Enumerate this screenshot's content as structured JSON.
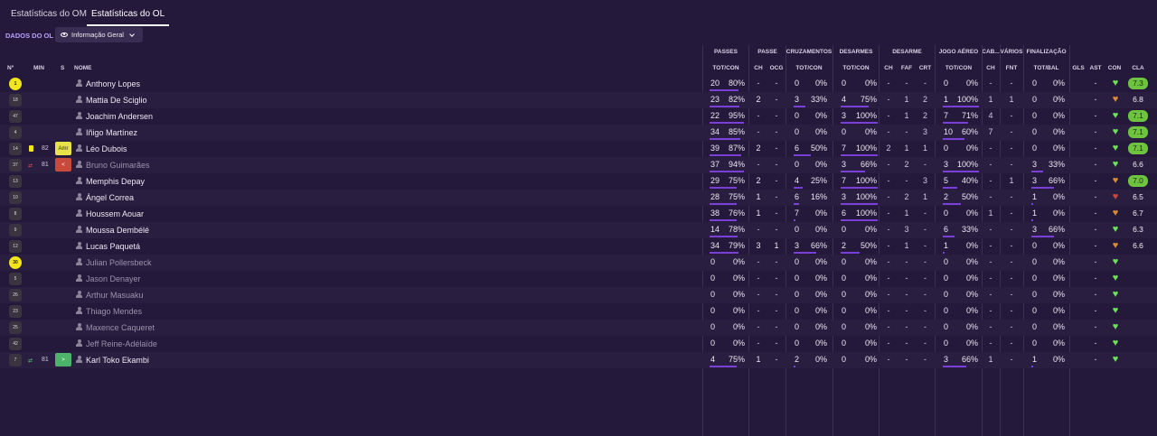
{
  "tabs": [
    {
      "label": "Estatísticas do OM"
    },
    {
      "label": "Estatísticas do OL"
    }
  ],
  "subbar": {
    "section": "DADOS DO OL",
    "view": "Informação Geral"
  },
  "groups": [
    "PASSES",
    "PASSE",
    "CRUZAMENTOS",
    "DESARMES",
    "DESARME",
    "JOGO AÉREO",
    "CAB...",
    "VÁRIOS",
    "FINALIZAÇÃO"
  ],
  "cols": {
    "num": "Nº",
    "min": "MIN",
    "s": "S",
    "name": "NOME",
    "pass_totcon": "TOT/CON",
    "ch": "CH",
    "ocg": "OCG",
    "cruz_totcon": "TOT/CON",
    "des_totcon": "TOT/CON",
    "des_ch": "CH",
    "faf": "FAF",
    "crt": "CRT",
    "air_totcon": "TOT/CON",
    "cab_ch": "CH",
    "fnt": "FNT",
    "totbal": "TOT/BAL",
    "gls": "GLS",
    "ast": "AST",
    "con": "CON",
    "cla": "CLA"
  },
  "colors": {
    "bg": "#24193a",
    "accent": "#7a3fd6",
    "rating_high": "#6ec43f",
    "card": "#f2e51a"
  },
  "players": [
    {
      "shirt": "1",
      "gk": true,
      "min": "",
      "event": "",
      "sub": "",
      "name": "Anthony Lopes",
      "muted": false,
      "p": [
        "20",
        "80%"
      ],
      "pch": "-",
      "ocg": "-",
      "cr": [
        "0",
        "0%"
      ],
      "de": [
        "0",
        "0%"
      ],
      "dch": "-",
      "faf": "-",
      "crt": "-",
      "air": [
        "0",
        "0%"
      ],
      "cch": "-",
      "fnt": "-",
      "fin": [
        "0",
        "0%"
      ],
      "gls": "",
      "ast": "-",
      "con": "green",
      "cla": "7.3",
      "hi": true
    },
    {
      "shirt": "18",
      "min": "",
      "event": "",
      "sub": "",
      "name": "Mattia De Sciglio",
      "muted": false,
      "p": [
        "23",
        "82%"
      ],
      "pch": "2",
      "ocg": "-",
      "cr": [
        "3",
        "33%"
      ],
      "de": [
        "4",
        "75%"
      ],
      "dch": "-",
      "faf": "1",
      "crt": "2",
      "air": [
        "1",
        "100%"
      ],
      "cch": "1",
      "fnt": "1",
      "fin": [
        "0",
        "0%"
      ],
      "gls": "",
      "ast": "-",
      "con": "orange",
      "cla": "6.8",
      "hi": false
    },
    {
      "shirt": "47",
      "min": "",
      "event": "",
      "sub": "",
      "name": "Joachim Andersen",
      "muted": false,
      "p": [
        "22",
        "95%"
      ],
      "pch": "-",
      "ocg": "-",
      "cr": [
        "0",
        "0%"
      ],
      "de": [
        "3",
        "100%"
      ],
      "dch": "-",
      "faf": "1",
      "crt": "2",
      "air": [
        "7",
        "71%"
      ],
      "cch": "4",
      "fnt": "-",
      "fin": [
        "0",
        "0%"
      ],
      "gls": "",
      "ast": "-",
      "con": "green",
      "cla": "7.1",
      "hi": true
    },
    {
      "shirt": "4",
      "min": "",
      "event": "",
      "sub": "",
      "name": "Iñigo Martínez",
      "muted": false,
      "p": [
        "34",
        "85%"
      ],
      "pch": "-",
      "ocg": "-",
      "cr": [
        "0",
        "0%"
      ],
      "de": [
        "0",
        "0%"
      ],
      "dch": "-",
      "faf": "-",
      "crt": "3",
      "air": [
        "10",
        "60%"
      ],
      "cch": "7",
      "fnt": "-",
      "fin": [
        "0",
        "0%"
      ],
      "gls": "",
      "ast": "-",
      "con": "green",
      "cla": "7.1",
      "hi": true
    },
    {
      "shirt": "14",
      "min": "82",
      "event": "card",
      "sub": "Amr",
      "name": "Léo Dubois",
      "muted": false,
      "p": [
        "39",
        "87%"
      ],
      "pch": "2",
      "ocg": "-",
      "cr": [
        "6",
        "50%"
      ],
      "de": [
        "7",
        "100%"
      ],
      "dch": "2",
      "faf": "1",
      "crt": "1",
      "air": [
        "0",
        "0%"
      ],
      "cch": "-",
      "fnt": "-",
      "fin": [
        "0",
        "0%"
      ],
      "gls": "",
      "ast": "-",
      "con": "green",
      "cla": "7.1",
      "hi": true
    },
    {
      "shirt": "37",
      "min": "81",
      "event": "subout",
      "sub": "<",
      "name": "Bruno Guimarães",
      "muted": true,
      "p": [
        "37",
        "94%"
      ],
      "pch": "-",
      "ocg": "-",
      "cr": [
        "0",
        "0%"
      ],
      "de": [
        "3",
        "66%"
      ],
      "dch": "-",
      "faf": "2",
      "crt": "-",
      "air": [
        "3",
        "100%"
      ],
      "cch": "-",
      "fnt": "-",
      "fin": [
        "3",
        "33%"
      ],
      "gls": "",
      "ast": "-",
      "con": "green",
      "cla": "6.6",
      "hi": false
    },
    {
      "shirt": "13",
      "min": "",
      "event": "",
      "sub": "",
      "name": "Memphis Depay",
      "muted": false,
      "p": [
        "29",
        "75%"
      ],
      "pch": "2",
      "ocg": "-",
      "cr": [
        "4",
        "25%"
      ],
      "de": [
        "7",
        "100%"
      ],
      "dch": "-",
      "faf": "-",
      "crt": "3",
      "air": [
        "5",
        "40%"
      ],
      "cch": "-",
      "fnt": "1",
      "fin": [
        "3",
        "66%"
      ],
      "gls": "",
      "ast": "-",
      "con": "orange",
      "cla": "7.0",
      "hi": true
    },
    {
      "shirt": "10",
      "min": "",
      "event": "",
      "sub": "",
      "name": "Ángel Correa",
      "muted": false,
      "p": [
        "28",
        "75%"
      ],
      "pch": "1",
      "ocg": "-",
      "cr": [
        "6",
        "16%"
      ],
      "de": [
        "3",
        "100%"
      ],
      "dch": "-",
      "faf": "2",
      "crt": "1",
      "air": [
        "2",
        "50%"
      ],
      "cch": "-",
      "fnt": "-",
      "fin": [
        "1",
        "0%"
      ],
      "gls": "",
      "ast": "-",
      "con": "red",
      "cla": "6.5",
      "hi": false
    },
    {
      "shirt": "8",
      "min": "",
      "event": "",
      "sub": "",
      "name": "Houssem Aouar",
      "muted": false,
      "p": [
        "38",
        "76%"
      ],
      "pch": "1",
      "ocg": "-",
      "cr": [
        "7",
        "0%"
      ],
      "de": [
        "6",
        "100%"
      ],
      "dch": "-",
      "faf": "1",
      "crt": "-",
      "air": [
        "0",
        "0%"
      ],
      "cch": "1",
      "fnt": "-",
      "fin": [
        "1",
        "0%"
      ],
      "gls": "",
      "ast": "-",
      "con": "orange",
      "cla": "6.7",
      "hi": false
    },
    {
      "shirt": "9",
      "min": "",
      "event": "",
      "sub": "",
      "name": "Moussa Dembélé",
      "muted": false,
      "p": [
        "14",
        "78%"
      ],
      "pch": "-",
      "ocg": "-",
      "cr": [
        "0",
        "0%"
      ],
      "de": [
        "0",
        "0%"
      ],
      "dch": "-",
      "faf": "3",
      "crt": "-",
      "air": [
        "6",
        "33%"
      ],
      "cch": "-",
      "fnt": "-",
      "fin": [
        "3",
        "66%"
      ],
      "gls": "",
      "ast": "-",
      "con": "green",
      "cla": "6.3",
      "hi": false
    },
    {
      "shirt": "12",
      "min": "",
      "event": "",
      "sub": "",
      "name": "Lucas Paquetá",
      "muted": false,
      "p": [
        "34",
        "79%"
      ],
      "pch": "3",
      "ocg": "1",
      "cr": [
        "3",
        "66%"
      ],
      "de": [
        "2",
        "50%"
      ],
      "dch": "-",
      "faf": "1",
      "crt": "-",
      "air": [
        "1",
        "0%"
      ],
      "cch": "-",
      "fnt": "-",
      "fin": [
        "0",
        "0%"
      ],
      "gls": "",
      "ast": "-",
      "con": "orange",
      "cla": "6.6",
      "hi": false
    },
    {
      "shirt": "30",
      "gk": true,
      "min": "",
      "event": "",
      "sub": "",
      "name": "Julian Pollersbeck",
      "muted": true,
      "p": [
        "0",
        "0%"
      ],
      "pch": "-",
      "ocg": "-",
      "cr": [
        "0",
        "0%"
      ],
      "de": [
        "0",
        "0%"
      ],
      "dch": "-",
      "faf": "-",
      "crt": "-",
      "air": [
        "0",
        "0%"
      ],
      "cch": "-",
      "fnt": "-",
      "fin": [
        "0",
        "0%"
      ],
      "gls": "",
      "ast": "-",
      "con": "green",
      "cla": "",
      "hi": false
    },
    {
      "shirt": "5",
      "min": "",
      "event": "",
      "sub": "",
      "name": "Jason Denayer",
      "muted": true,
      "p": [
        "0",
        "0%"
      ],
      "pch": "-",
      "ocg": "-",
      "cr": [
        "0",
        "0%"
      ],
      "de": [
        "0",
        "0%"
      ],
      "dch": "-",
      "faf": "-",
      "crt": "-",
      "air": [
        "0",
        "0%"
      ],
      "cch": "-",
      "fnt": "-",
      "fin": [
        "0",
        "0%"
      ],
      "gls": "",
      "ast": "-",
      "con": "green",
      "cla": "",
      "hi": false
    },
    {
      "shirt": "26",
      "min": "",
      "event": "",
      "sub": "",
      "name": "Arthur Masuaku",
      "muted": true,
      "p": [
        "0",
        "0%"
      ],
      "pch": "-",
      "ocg": "-",
      "cr": [
        "0",
        "0%"
      ],
      "de": [
        "0",
        "0%"
      ],
      "dch": "-",
      "faf": "-",
      "crt": "-",
      "air": [
        "0",
        "0%"
      ],
      "cch": "-",
      "fnt": "-",
      "fin": [
        "0",
        "0%"
      ],
      "gls": "",
      "ast": "-",
      "con": "green",
      "cla": "",
      "hi": false
    },
    {
      "shirt": "23",
      "min": "",
      "event": "",
      "sub": "",
      "name": "Thiago Mendes",
      "muted": true,
      "p": [
        "0",
        "0%"
      ],
      "pch": "-",
      "ocg": "-",
      "cr": [
        "0",
        "0%"
      ],
      "de": [
        "0",
        "0%"
      ],
      "dch": "-",
      "faf": "-",
      "crt": "-",
      "air": [
        "0",
        "0%"
      ],
      "cch": "-",
      "fnt": "-",
      "fin": [
        "0",
        "0%"
      ],
      "gls": "",
      "ast": "-",
      "con": "green",
      "cla": "",
      "hi": false
    },
    {
      "shirt": "25",
      "min": "",
      "event": "",
      "sub": "",
      "name": "Maxence Caqueret",
      "muted": true,
      "p": [
        "0",
        "0%"
      ],
      "pch": "-",
      "ocg": "-",
      "cr": [
        "0",
        "0%"
      ],
      "de": [
        "0",
        "0%"
      ],
      "dch": "-",
      "faf": "-",
      "crt": "-",
      "air": [
        "0",
        "0%"
      ],
      "cch": "-",
      "fnt": "-",
      "fin": [
        "0",
        "0%"
      ],
      "gls": "",
      "ast": "-",
      "con": "green",
      "cla": "",
      "hi": false
    },
    {
      "shirt": "42",
      "min": "",
      "event": "",
      "sub": "",
      "name": "Jeff Reine-Adélaïde",
      "muted": true,
      "p": [
        "0",
        "0%"
      ],
      "pch": "-",
      "ocg": "-",
      "cr": [
        "0",
        "0%"
      ],
      "de": [
        "0",
        "0%"
      ],
      "dch": "-",
      "faf": "-",
      "crt": "-",
      "air": [
        "0",
        "0%"
      ],
      "cch": "-",
      "fnt": "-",
      "fin": [
        "0",
        "0%"
      ],
      "gls": "",
      "ast": "-",
      "con": "green",
      "cla": "",
      "hi": false
    },
    {
      "shirt": "7",
      "min": "81",
      "event": "subin",
      "sub": ">",
      "name": "Karl Toko Ekambi",
      "muted": false,
      "p": [
        "4",
        "75%"
      ],
      "pch": "1",
      "ocg": "-",
      "cr": [
        "2",
        "0%"
      ],
      "de": [
        "0",
        "0%"
      ],
      "dch": "-",
      "faf": "-",
      "crt": "-",
      "air": [
        "3",
        "66%"
      ],
      "cch": "1",
      "fnt": "-",
      "fin": [
        "1",
        "0%"
      ],
      "gls": "",
      "ast": "-",
      "con": "green",
      "cla": "",
      "hi": false
    }
  ]
}
